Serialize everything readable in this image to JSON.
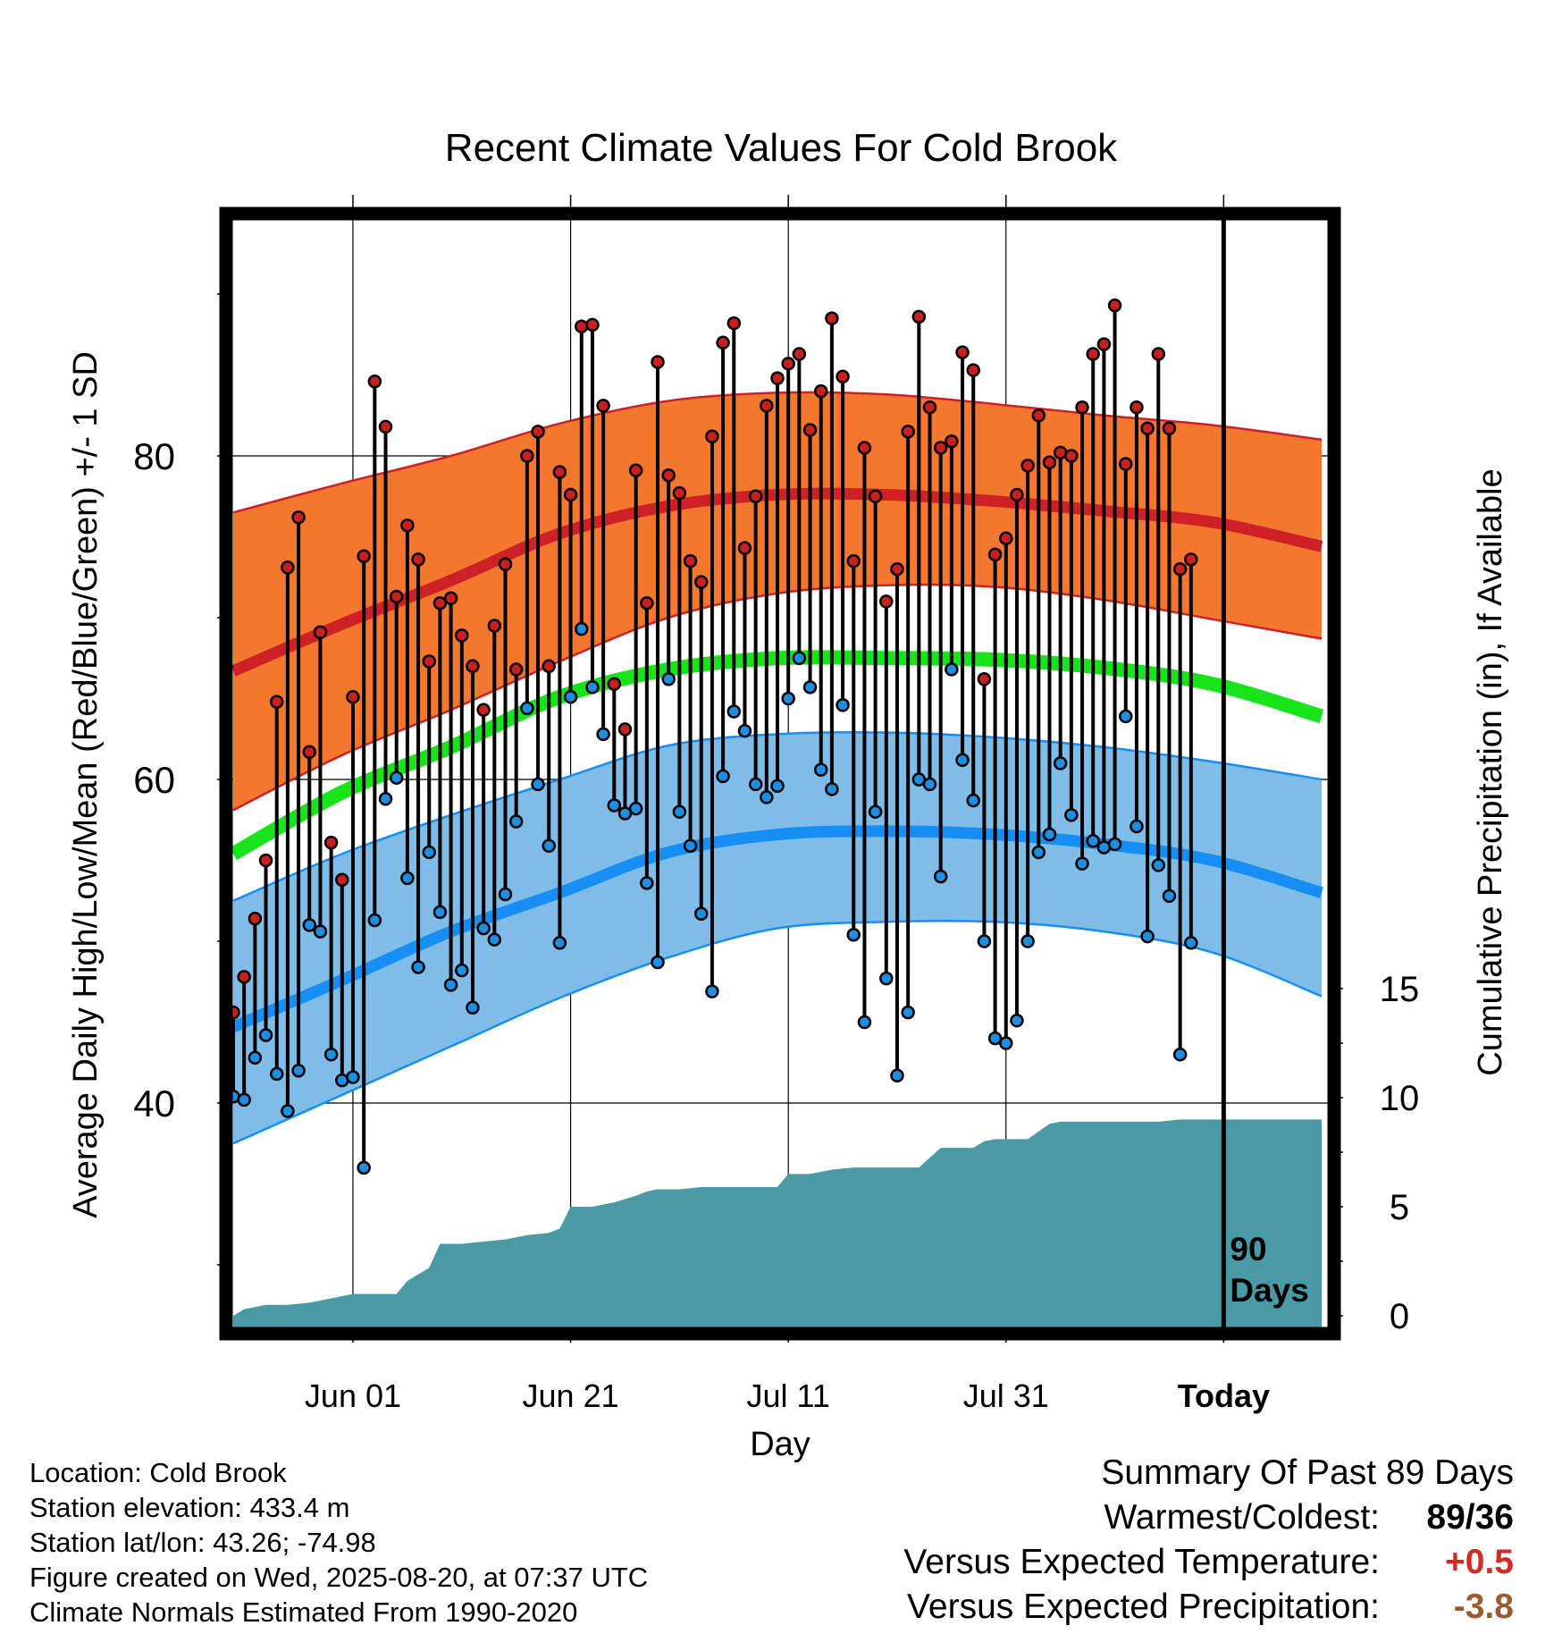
{
  "chart_data": {
    "type": "line",
    "title": "Recent Climate Values For Cold Brook",
    "ylabel": "Average Daily High/Low/Mean (Red/Blue/Green) +/- 1 SD",
    "y2label": "Cumulative Precipitation (in), If Available",
    "xlabel": "Day",
    "ylim": [
      24,
      94
    ],
    "y2lim": [
      0,
      20
    ],
    "y_ticks": [
      40,
      60,
      80
    ],
    "y2_ticks": [
      0,
      5,
      10,
      15
    ],
    "x_ticks": [
      {
        "day": 11,
        "label": "Jun 01"
      },
      {
        "day": 31,
        "label": "Jun 21"
      },
      {
        "day": 51,
        "label": "Jul 11"
      },
      {
        "day": 71,
        "label": "Jul 31"
      },
      {
        "day": 91,
        "label": "Today"
      }
    ],
    "today_day": 91,
    "today_annotation": [
      "90",
      "Days"
    ],
    "x_start_date": "May 21",
    "normals": {
      "days": [
        0,
        10,
        20,
        30,
        40,
        50,
        60,
        70,
        80,
        90,
        100
      ],
      "high_mean": [
        66.7,
        69.6,
        72.3,
        75.2,
        76.9,
        77.6,
        77.6,
        77.2,
        76.6,
        75.9,
        74.4
      ],
      "high_upper": [
        76.5,
        78.3,
        80.0,
        82.0,
        83.4,
        83.9,
        83.8,
        83.2,
        82.5,
        81.9,
        81.0
      ],
      "high_lower": [
        58.1,
        61.5,
        64.3,
        67.3,
        70.0,
        71.5,
        72.0,
        71.9,
        71.1,
        69.9,
        68.7
      ],
      "mean": [
        55.4,
        59.2,
        62.0,
        65.1,
        66.8,
        67.5,
        67.5,
        67.4,
        66.9,
        65.9,
        63.9
      ],
      "low_mean": [
        44.7,
        47.6,
        50.6,
        53.0,
        55.5,
        56.6,
        56.8,
        56.6,
        56.0,
        55.0,
        53.0
      ],
      "low_upper": [
        52.5,
        55.4,
        57.8,
        60.0,
        62.1,
        62.8,
        62.9,
        62.6,
        62.0,
        61.1,
        60.0
      ],
      "low_lower": [
        37.5,
        40.5,
        43.5,
        46.5,
        49.0,
        50.8,
        51.2,
        51.2,
        50.6,
        49.3,
        46.6
      ]
    },
    "series": [
      {
        "name": "High",
        "color": "#c8201e",
        "values": [
          45.6,
          47.8,
          51.4,
          55.0,
          64.8,
          73.1,
          76.2,
          61.7,
          69.1,
          56.1,
          53.8,
          65.1,
          73.8,
          84.6,
          81.8,
          71.3,
          75.7,
          73.6,
          67.3,
          70.9,
          71.2,
          68.9,
          67.0,
          64.3,
          69.5,
          73.3,
          66.8,
          80.0,
          81.5,
          67.0,
          79.0,
          77.6,
          88.0,
          88.1,
          83.1,
          65.9,
          63.1,
          79.1,
          70.9,
          85.8,
          78.8,
          77.7,
          73.5,
          72.2,
          81.2,
          87.0,
          88.2,
          74.3,
          77.5,
          83.1,
          84.8,
          85.7,
          86.3,
          81.6,
          84.0,
          88.5,
          84.9,
          73.5,
          80.5,
          77.5,
          71.0,
          73.0,
          81.5,
          88.6,
          83.0,
          80.5,
          80.9,
          86.4,
          85.3,
          66.2,
          73.9,
          74.9,
          77.6,
          79.4,
          82.5,
          79.6,
          80.2,
          80.0,
          83.0,
          86.3,
          86.9,
          89.3,
          79.5,
          83.0,
          81.7,
          86.3,
          81.7,
          73.0,
          73.6
        ]
      },
      {
        "name": "Low",
        "color": "#1e8ee0",
        "values": [
          40.4,
          40.2,
          42.8,
          44.2,
          41.8,
          39.5,
          42.0,
          51.0,
          50.6,
          43.0,
          41.4,
          41.6,
          36.0,
          51.3,
          58.8,
          60.1,
          53.9,
          48.4,
          55.5,
          51.8,
          47.3,
          48.2,
          45.9,
          50.8,
          50.1,
          52.9,
          57.4,
          64.4,
          59.7,
          55.9,
          49.9,
          65.1,
          69.3,
          65.7,
          62.8,
          58.4,
          57.9,
          58.2,
          53.6,
          48.7,
          66.2,
          58.0,
          55.9,
          51.7,
          46.9,
          60.2,
          64.2,
          63.0,
          59.7,
          58.9,
          59.6,
          65.0,
          67.5,
          65.7,
          60.6,
          59.4,
          64.6,
          50.4,
          45.0,
          58.0,
          47.7,
          41.7,
          45.6,
          60.0,
          59.7,
          54.0,
          66.8,
          61.2,
          58.7,
          50.0,
          44.0,
          43.7,
          45.1,
          50.0,
          55.5,
          56.6,
          61.0,
          57.8,
          54.8,
          56.2,
          55.8,
          56.0,
          63.9,
          57.1,
          50.3,
          54.7,
          52.8,
          43.0,
          49.9
        ]
      }
    ],
    "precip_cumulative": {
      "days": [
        0,
        1,
        2,
        3,
        5,
        7,
        9,
        11,
        13,
        15,
        16,
        17,
        18,
        19,
        21,
        23,
        25,
        27,
        29,
        30,
        31,
        32,
        33,
        35,
        37,
        38,
        39,
        41,
        43,
        45,
        47,
        50,
        51,
        52,
        53,
        55,
        57,
        58,
        59,
        61,
        63,
        65,
        67,
        68,
        69,
        70,
        71,
        73,
        75,
        76,
        77,
        79,
        81,
        83,
        85,
        87,
        89,
        90,
        100
      ],
      "values": [
        0.0,
        0.3,
        0.4,
        0.5,
        0.5,
        0.6,
        0.8,
        1.0,
        1.0,
        1.0,
        1.6,
        1.9,
        2.2,
        3.3,
        3.3,
        3.4,
        3.5,
        3.7,
        3.8,
        4.0,
        5.0,
        5.0,
        5.0,
        5.2,
        5.5,
        5.7,
        5.8,
        5.8,
        5.9,
        5.9,
        5.9,
        5.9,
        6.5,
        6.5,
        6.5,
        6.7,
        6.8,
        6.8,
        6.8,
        6.8,
        6.8,
        7.7,
        7.7,
        7.7,
        8.0,
        8.1,
        8.1,
        8.1,
        8.8,
        8.9,
        8.9,
        8.9,
        8.9,
        8.9,
        8.9,
        9.0,
        9.0,
        9.0,
        9.0
      ]
    }
  },
  "info": {
    "location": "Location: Cold Brook",
    "elevation": "Station elevation: 433.4 m",
    "latlon": "Station lat/lon: 43.26; -74.98",
    "created": "Figure created on Wed, 2025-08-20, at 07:37 UTC",
    "normals_note": "Climate Normals Estimated From 1990-2020"
  },
  "summary": {
    "heading": "Summary Of Past 89 Days",
    "warm_cold_label": "Warmest/Coldest:",
    "warm_cold_value": "89/36",
    "temp_label": "Versus Expected Temperature:",
    "temp_value": "+0.5",
    "temp_color": "#d42a24",
    "precip_label": "Versus Expected Precipitation:",
    "precip_value": "-3.8",
    "precip_color": "#9a5a32"
  },
  "colors": {
    "high_band": "#f3772f",
    "high_line": "#cd2127",
    "mean_line": "#19e31a",
    "low_band": "#7fbde8",
    "low_line": "#168ef3",
    "precip_fill": "#4a9aa5"
  }
}
